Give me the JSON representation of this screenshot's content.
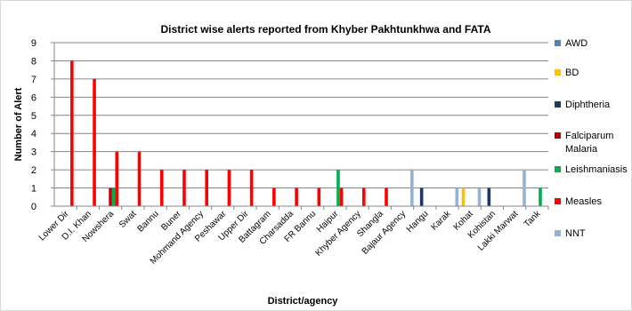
{
  "chart_data": {
    "type": "bar",
    "title": "District wise alerts reported from Khyber Pakhtunkhwa and FATA",
    "xlabel": "District/agency",
    "ylabel": "Number of Alert",
    "ylim": [
      0,
      9
    ],
    "yticks": [
      0,
      1,
      2,
      3,
      4,
      5,
      6,
      7,
      8,
      9
    ],
    "grid": true,
    "legend_position": "right",
    "categories": [
      "Lower Dir",
      "D.I. Khan",
      "Nowshera",
      "Swat",
      "Bannu",
      "Buner",
      "Mohmand Agency",
      "Peshawar",
      "Upper Dir",
      "Battagram",
      "Charsadda",
      "FR Bannu",
      "Haipur",
      "Khyber Agency",
      "Shangla",
      "Bajaur Agency",
      "Hangu",
      "Karak",
      "Kohat",
      "Kohistan",
      "Lakki Marwat",
      "Tank"
    ],
    "series": [
      {
        "name": "AWD",
        "color": "#4f81bd",
        "values": [
          0,
          0,
          0,
          0,
          0,
          0,
          0,
          0,
          0,
          0,
          0,
          0,
          0,
          0,
          0,
          0,
          0,
          0,
          0,
          0,
          0,
          0
        ]
      },
      {
        "name": "BD",
        "color": "#ffc000",
        "values": [
          0,
          0,
          0,
          0,
          0,
          0,
          0,
          0,
          0,
          0,
          0,
          0,
          0,
          0,
          0,
          0,
          0,
          0,
          1,
          0,
          0,
          0
        ]
      },
      {
        "name": "Diphtheria",
        "color": "#1f3864",
        "values": [
          0,
          0,
          0,
          0,
          0,
          0,
          0,
          0,
          0,
          0,
          0,
          0,
          0,
          0,
          0,
          0,
          1,
          0,
          0,
          1,
          0,
          0
        ]
      },
      {
        "name": "Falciparum Malaria",
        "color": "#c00000",
        "values": [
          0,
          0,
          1,
          0,
          0,
          0,
          0,
          0,
          0,
          0,
          0,
          0,
          0,
          0,
          0,
          0,
          0,
          0,
          0,
          0,
          0,
          0
        ]
      },
      {
        "name": "Leishmaniasis",
        "color": "#00b050",
        "values": [
          0,
          0,
          1,
          0,
          0,
          0,
          0,
          0,
          0,
          0,
          0,
          0,
          2,
          0,
          0,
          0,
          0,
          0,
          0,
          0,
          0,
          1
        ]
      },
      {
        "name": "Measles",
        "color": "#ff0000",
        "values": [
          8,
          7,
          3,
          3,
          2,
          2,
          2,
          2,
          2,
          1,
          1,
          1,
          1,
          1,
          1,
          0,
          0,
          0,
          0,
          0,
          0,
          0
        ]
      },
      {
        "name": "NNT",
        "color": "#95b3d7",
        "values": [
          0,
          0,
          0,
          0,
          0,
          0,
          0,
          0,
          0,
          0,
          0,
          0,
          0,
          0,
          0,
          2,
          0,
          1,
          1,
          0,
          2,
          0
        ]
      }
    ]
  }
}
